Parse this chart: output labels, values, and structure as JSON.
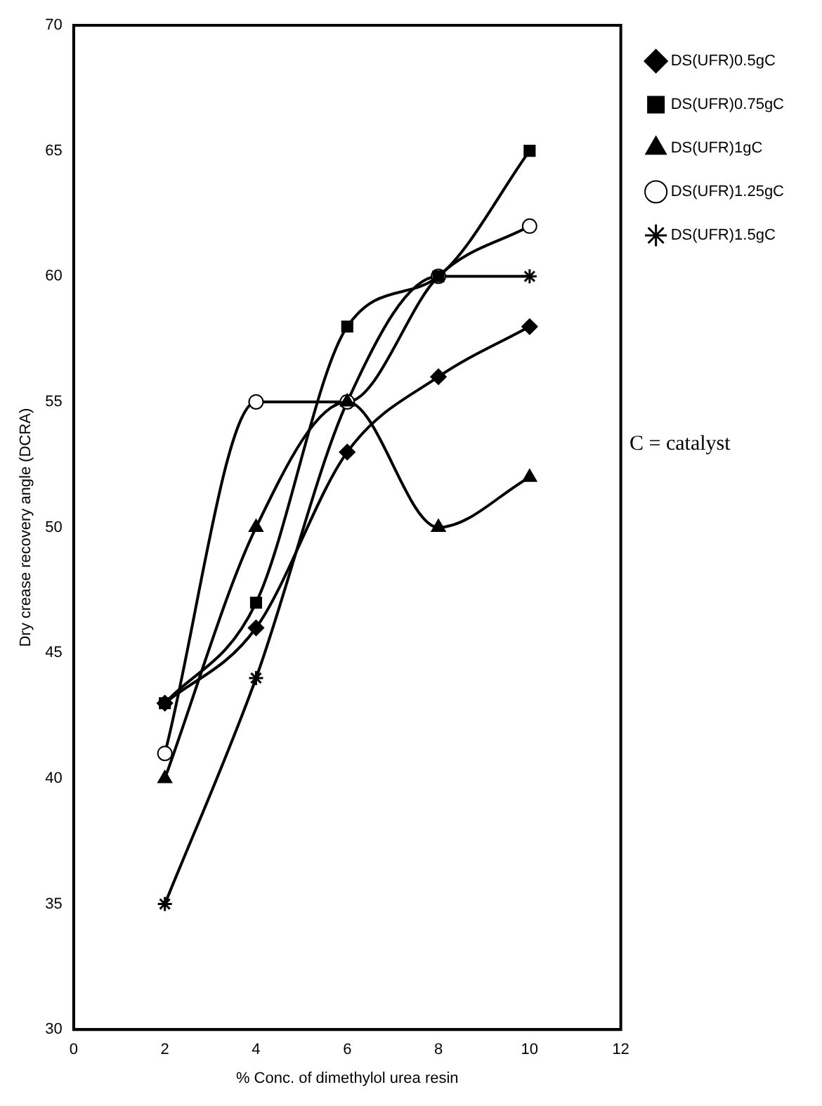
{
  "chart_data": {
    "type": "line",
    "xlabel": "% Conc. of dimethylol urea resin",
    "ylabel": "Dry crease recovery angle (DCRA)",
    "x": [
      2,
      4,
      6,
      8,
      10
    ],
    "xlim": [
      0,
      12
    ],
    "xticks": [
      0,
      2,
      4,
      6,
      8,
      10,
      12
    ],
    "ylim": [
      30,
      70
    ],
    "yticks": [
      30,
      35,
      40,
      45,
      50,
      55,
      60,
      65,
      70
    ],
    "grid": false,
    "legend": "right",
    "line_style": "solid",
    "series": [
      {
        "name": "DS(UFR)0.5gC",
        "color": "#000000",
        "marker": "diamond",
        "values": [
          43,
          46,
          53,
          56,
          58
        ]
      },
      {
        "name": "DS(UFR)0.75gC",
        "color": "#000000",
        "marker": "square",
        "values": [
          43,
          47,
          58,
          60,
          65
        ]
      },
      {
        "name": "DS(UFR)1gC",
        "color": "#000000",
        "marker": "triangle",
        "values": [
          40,
          50,
          55,
          50,
          52
        ]
      },
      {
        "name": "DS(UFR)1.25gC",
        "color": "#000000",
        "marker": "circle",
        "values": [
          41,
          55,
          55,
          60,
          62
        ]
      },
      {
        "name": "DS(UFR)1.5gC",
        "color": "#000000",
        "marker": "cross",
        "values": [
          35,
          44,
          55,
          60,
          60
        ]
      }
    ],
    "annotations": [
      "C = catalyst"
    ]
  }
}
